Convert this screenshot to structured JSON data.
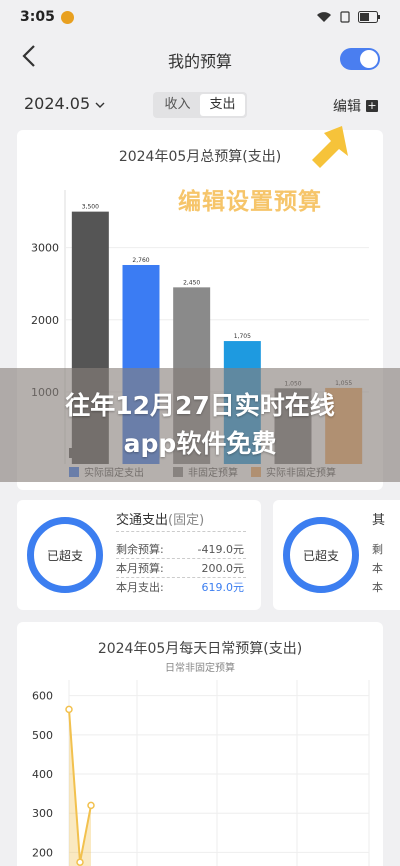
{
  "status": {
    "time": "3:05",
    "wifi_icon": "wifi-icon",
    "battery": "55"
  },
  "header": {
    "title": "我的预算",
    "back_icon": "chevron-left-icon"
  },
  "subbar": {
    "month": "2024.05",
    "tabs": [
      {
        "label": "收入",
        "active": false
      },
      {
        "label": "支出",
        "active": true
      }
    ],
    "edit_label": "编辑"
  },
  "annotation": "编辑设置预算",
  "overlay": {
    "line1": "往年12月27日实时在线",
    "line2": "app软件免费"
  },
  "chart_data": [
    {
      "type": "bar",
      "title": "2024年05月总预算(支出)",
      "categories": [
        "设定预算",
        "实际固定支出",
        "非固定预算",
        "实际非固定支出",
        "",
        ""
      ],
      "values": [
        3500,
        2760,
        2450,
        1705,
        1050,
        1055
      ],
      "labels": [
        "3,500",
        "2,760",
        "2,450",
        "1,705",
        "1,050",
        "1,055"
      ],
      "colors": [
        "#555555",
        "#3b7cf3",
        "#8a8a8a",
        "#1e9ae0",
        "#7a7a7a",
        "#f2ab64"
      ],
      "yticks": [
        1000,
        2000,
        3000
      ],
      "ylim": [
        0,
        3800
      ],
      "legend": [
        {
          "name": "设定",
          "color": "#555555"
        },
        {
          "name": "实际固定支出",
          "color": "#3b7cf3"
        },
        {
          "name": "非固定预算",
          "color": "#8a8a8a"
        },
        {
          "name": "实际非固定预算",
          "color": "#f2ab64"
        }
      ]
    },
    {
      "type": "line",
      "title": "2024年05月每天日常预算(支出)",
      "subtitle": "日常非固定预算",
      "x": [
        1,
        2,
        3
      ],
      "y": [
        565,
        175,
        320
      ],
      "yticks": [
        200,
        300,
        400,
        500,
        600
      ],
      "ylim": [
        150,
        640
      ],
      "color": "#f2c14e"
    }
  ],
  "summary_cards": [
    {
      "ring_label": "已超支",
      "title": "交通支出",
      "tag": "(固定)",
      "rows": [
        {
          "label": "剩余预算:",
          "value": "-419.0元"
        },
        {
          "label": "本月预算:",
          "value": "200.0元"
        },
        {
          "label": "本月支出:",
          "value": "619.0元"
        }
      ]
    },
    {
      "ring_label": "已超支",
      "title": "其",
      "rows": [
        {
          "label": "剩"
        },
        {
          "label": "本"
        },
        {
          "label": "本"
        }
      ]
    }
  ]
}
